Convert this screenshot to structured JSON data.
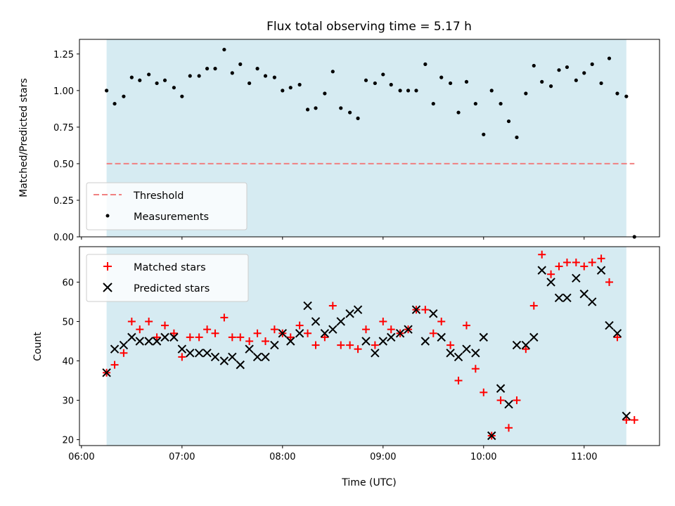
{
  "chart_data": [
    {
      "type": "scatter",
      "title": "Flux total observing time = 5.17 h",
      "xlabel": "",
      "ylabel": "Matched/Predicted stars",
      "ylim": [
        0,
        1.35
      ],
      "yticks": [
        0,
        0.25,
        0.5,
        0.75,
        1.0,
        1.25
      ],
      "ytick_labels": [
        "0.00",
        "0.25",
        "0.50",
        "0.75",
        "1.00",
        "1.25"
      ],
      "xlim_hours": [
        5.98,
        11.75
      ],
      "observing_window_hours": [
        6.25,
        11.42
      ],
      "threshold": {
        "name": "Threshold",
        "value": 0.5,
        "x_range_hours": [
          6.25,
          11.5
        ],
        "color": "#f08080"
      },
      "legend_position": "lower-left",
      "legend": [
        "Threshold",
        "Measurements"
      ],
      "series": [
        {
          "name": "Measurements",
          "marker": "dot",
          "color": "#000000",
          "x_hours": [
            6.25,
            6.33,
            6.42,
            6.5,
            6.58,
            6.67,
            6.75,
            6.83,
            6.92,
            7.0,
            7.08,
            7.17,
            7.25,
            7.33,
            7.42,
            7.5,
            7.58,
            7.67,
            7.75,
            7.83,
            7.92,
            8.0,
            8.08,
            8.17,
            8.25,
            8.33,
            8.42,
            8.5,
            8.58,
            8.67,
            8.75,
            8.83,
            8.92,
            9.0,
            9.08,
            9.17,
            9.25,
            9.33,
            9.42,
            9.5,
            9.58,
            9.67,
            9.75,
            9.83,
            9.92,
            10.0,
            10.08,
            10.17,
            10.25,
            10.33,
            10.42,
            10.5,
            10.58,
            10.67,
            10.75,
            10.83,
            10.92,
            11.0,
            11.08,
            11.17,
            11.25,
            11.33,
            11.42,
            11.5
          ],
          "values": [
            1.0,
            0.91,
            0.96,
            1.09,
            1.07,
            1.11,
            1.05,
            1.07,
            1.02,
            0.96,
            1.1,
            1.1,
            1.15,
            1.15,
            1.28,
            1.12,
            1.18,
            1.05,
            1.15,
            1.1,
            1.09,
            1.0,
            1.02,
            1.04,
            0.87,
            0.88,
            0.98,
            1.13,
            0.88,
            0.85,
            0.81,
            1.07,
            1.05,
            1.11,
            1.04,
            1.0,
            1.0,
            1.0,
            1.18,
            0.91,
            1.09,
            1.05,
            0.85,
            1.06,
            0.91,
            0.7,
            1.0,
            0.91,
            0.79,
            0.68,
            0.98,
            1.17,
            1.06,
            1.03,
            1.14,
            1.16,
            1.07,
            1.12,
            1.18,
            1.05,
            1.22,
            0.98,
            0.96,
            0.0
          ]
        }
      ]
    },
    {
      "type": "scatter",
      "title": "",
      "xlabel": "Time (UTC)",
      "ylabel": "Count",
      "ylim": [
        18.5,
        69
      ],
      "yticks": [
        20,
        30,
        40,
        50,
        60
      ],
      "ytick_labels": [
        "20",
        "30",
        "40",
        "50",
        "60"
      ],
      "xlim_hours": [
        5.98,
        11.75
      ],
      "xticks_hours": [
        6,
        7,
        8,
        9,
        10,
        11
      ],
      "xtick_labels": [
        "06:00",
        "07:00",
        "08:00",
        "09:00",
        "10:00",
        "11:00"
      ],
      "observing_window_hours": [
        6.25,
        11.42
      ],
      "legend_position": "upper-left",
      "legend": [
        "Matched stars",
        "Predicted stars"
      ],
      "series": [
        {
          "name": "Matched stars",
          "marker": "plus",
          "color": "#ff0000",
          "x_hours": [
            6.25,
            6.33,
            6.42,
            6.5,
            6.58,
            6.67,
            6.75,
            6.83,
            6.92,
            7.0,
            7.08,
            7.17,
            7.25,
            7.33,
            7.42,
            7.5,
            7.58,
            7.67,
            7.75,
            7.83,
            7.92,
            8.0,
            8.08,
            8.17,
            8.25,
            8.33,
            8.42,
            8.5,
            8.58,
            8.67,
            8.75,
            8.83,
            8.92,
            9.0,
            9.08,
            9.17,
            9.25,
            9.33,
            9.42,
            9.5,
            9.58,
            9.67,
            9.75,
            9.83,
            9.92,
            10.0,
            10.08,
            10.17,
            10.25,
            10.33,
            10.42,
            10.5,
            10.58,
            10.67,
            10.75,
            10.83,
            10.92,
            11.0,
            11.08,
            11.17,
            11.25,
            11.33,
            11.42,
            11.5
          ],
          "values": [
            37,
            39,
            42,
            50,
            48,
            50,
            46,
            49,
            47,
            41,
            46,
            46,
            48,
            47,
            51,
            46,
            46,
            45,
            47,
            45,
            48,
            47,
            46,
            49,
            47,
            44,
            46,
            54,
            44,
            44,
            43,
            48,
            44,
            50,
            48,
            47,
            48,
            53,
            53,
            47,
            50,
            44,
            35,
            49,
            38,
            32,
            21,
            30,
            23,
            30,
            43,
            54,
            67,
            62,
            64,
            65,
            65,
            64,
            65,
            66,
            60,
            46,
            25,
            25
          ]
        },
        {
          "name": "Predicted stars",
          "marker": "x",
          "color": "#000000",
          "x_hours": [
            6.25,
            6.33,
            6.42,
            6.5,
            6.58,
            6.67,
            6.75,
            6.83,
            6.92,
            7.0,
            7.08,
            7.17,
            7.25,
            7.33,
            7.42,
            7.5,
            7.58,
            7.67,
            7.75,
            7.83,
            7.92,
            8.0,
            8.08,
            8.17,
            8.25,
            8.33,
            8.42,
            8.5,
            8.58,
            8.67,
            8.75,
            8.83,
            8.92,
            9.0,
            9.08,
            9.17,
            9.25,
            9.33,
            9.42,
            9.5,
            9.58,
            9.67,
            9.75,
            9.83,
            9.92,
            10.0,
            10.08,
            10.17,
            10.25,
            10.33,
            10.42,
            10.5,
            10.58,
            10.67,
            10.75,
            10.83,
            10.92,
            11.0,
            11.08,
            11.17,
            11.25,
            11.33,
            11.42
          ],
          "values": [
            37,
            43,
            44,
            46,
            45,
            45,
            45,
            46,
            46,
            43,
            42,
            42,
            42,
            41,
            40,
            41,
            39,
            43,
            41,
            41,
            44,
            47,
            45,
            47,
            54,
            50,
            47,
            48,
            50,
            52,
            53,
            45,
            42,
            45,
            46,
            47,
            48,
            53,
            45,
            52,
            46,
            42,
            41,
            43,
            42,
            46,
            21,
            33,
            29,
            44,
            44,
            46,
            63,
            60,
            56,
            56,
            61,
            57,
            55,
            63,
            49,
            47,
            26
          ]
        }
      ]
    }
  ]
}
